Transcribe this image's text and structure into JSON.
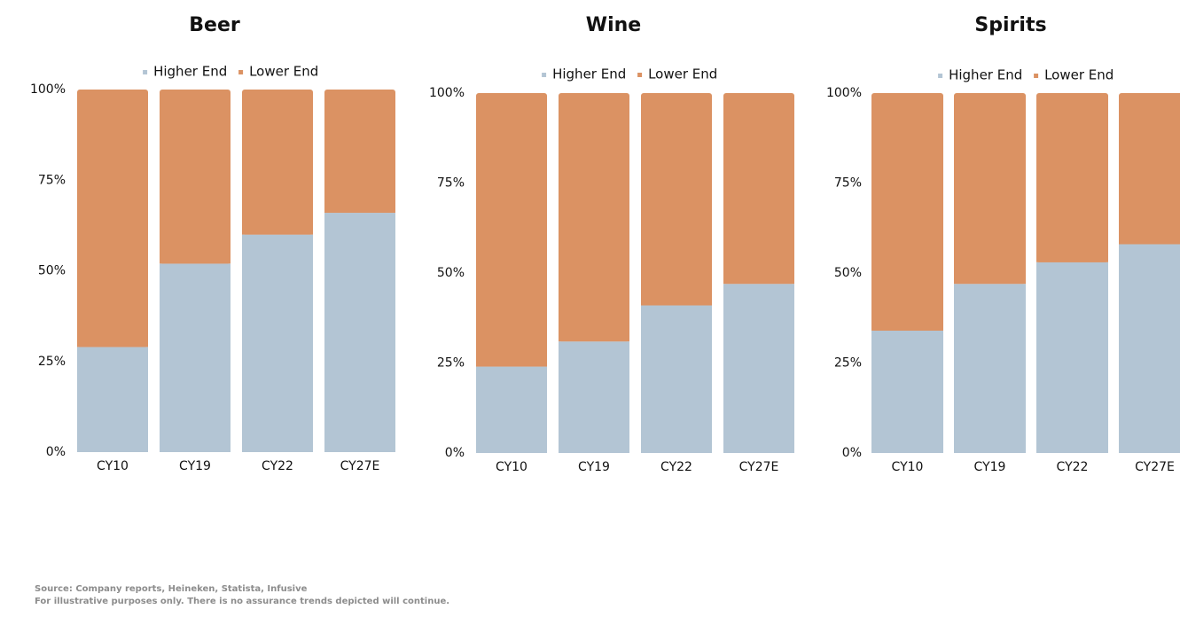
{
  "colors": {
    "higher": "#b3c5d4",
    "lower": "#db9263",
    "text": "#111111",
    "footer": "#8c8c8c"
  },
  "chart_data": [
    {
      "type": "bar",
      "stacked": true,
      "percent": true,
      "title": "Beer",
      "categories": [
        "CY10",
        "CY19",
        "CY22",
        "CY27E"
      ],
      "series": [
        {
          "name": "Higher End",
          "values": [
            29,
            52,
            60,
            66
          ]
        },
        {
          "name": "Lower End",
          "values": [
            71,
            48,
            40,
            34
          ]
        }
      ],
      "ylim": [
        0,
        100
      ],
      "yticks": [
        "0%",
        "25%",
        "50%",
        "75%",
        "100%"
      ],
      "legend": "top-center",
      "grid": false
    },
    {
      "type": "bar",
      "stacked": true,
      "percent": true,
      "title": "Wine",
      "categories": [
        "CY10",
        "CY19",
        "CY22",
        "CY27E"
      ],
      "series": [
        {
          "name": "Higher End",
          "values": [
            24,
            31,
            41,
            47
          ]
        },
        {
          "name": "Lower End",
          "values": [
            76,
            69,
            59,
            53
          ]
        }
      ],
      "ylim": [
        0,
        100
      ],
      "yticks": [
        "0%",
        "25%",
        "50%",
        "75%",
        "100%"
      ],
      "legend": "top-center",
      "grid": false
    },
    {
      "type": "bar",
      "stacked": true,
      "percent": true,
      "title": "Spirits",
      "categories": [
        "CY10",
        "CY19",
        "CY22",
        "CY27E"
      ],
      "series": [
        {
          "name": "Higher End",
          "values": [
            34,
            47,
            53,
            58
          ]
        },
        {
          "name": "Lower End",
          "values": [
            66,
            53,
            47,
            42
          ]
        }
      ],
      "ylim": [
        0,
        100
      ],
      "yticks": [
        "0%",
        "25%",
        "50%",
        "75%",
        "100%"
      ],
      "legend": "top-center",
      "grid": false
    }
  ],
  "footer": {
    "source": "Source: Company reports, Heineken, Statista, Infusive",
    "disclaimer": "For illustrative purposes only. There is no assurance trends depicted will continue."
  }
}
